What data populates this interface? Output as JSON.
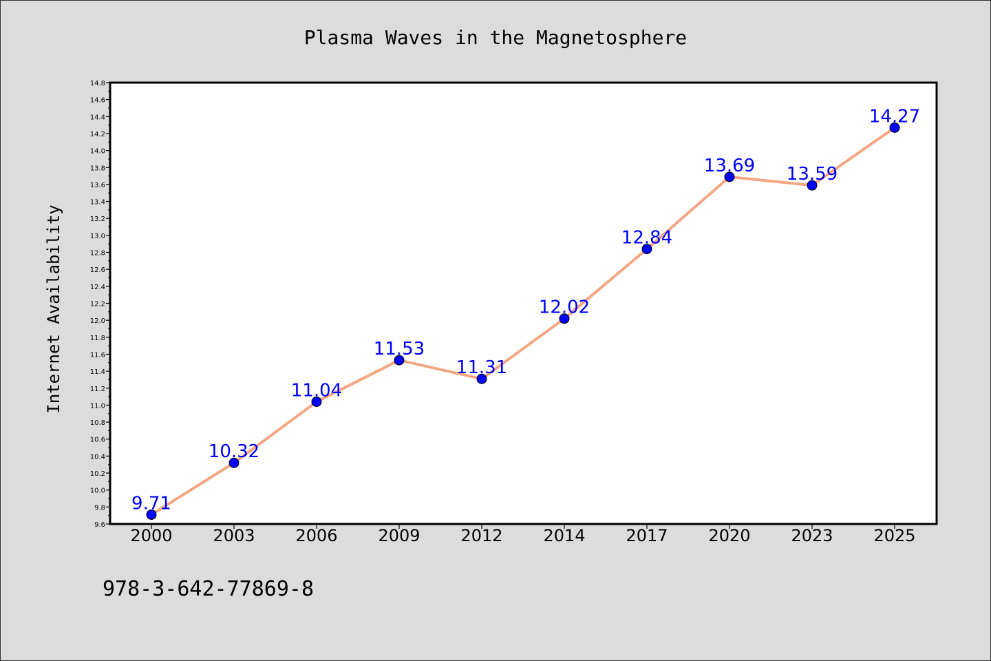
{
  "chart_data": {
    "type": "line",
    "title": "Plasma Waves in the Magnetosphere",
    "xlabel": "",
    "ylabel": "Internet Availability",
    "categories": [
      "2000",
      "2003",
      "2006",
      "2009",
      "2012",
      "2014",
      "2017",
      "2020",
      "2023",
      "2025"
    ],
    "series": [
      {
        "values": [
          9.71,
          10.32,
          11.04,
          11.53,
          11.31,
          12.02,
          12.84,
          13.69,
          13.59,
          14.27
        ],
        "line_color": "#f4a582",
        "marker_color": "#0000ff"
      }
    ],
    "data_labels": [
      "9.71",
      "10.32",
      "11.04",
      "11.53",
      "11.31",
      "12.02",
      "12.84",
      "13.69",
      "13.59",
      "14.27"
    ],
    "ylim": [
      9.6,
      14.8
    ],
    "yticks": [
      "9.6",
      "9.8",
      "10.0",
      "10.2",
      "10.4",
      "10.6",
      "10.8",
      "11.0",
      "11.2",
      "11.4",
      "11.6",
      "11.8",
      "12.0",
      "12.2",
      "12.4",
      "12.6",
      "12.8",
      "13.0",
      "13.2",
      "13.4",
      "13.6",
      "13.8",
      "14.0",
      "14.2",
      "14.4",
      "14.6",
      "14.8"
    ],
    "grid": false,
    "legend": "none",
    "label_color": "#0000ff",
    "background_color": "#dcdcdc",
    "plot_background_color": "#ffffff"
  },
  "footer": {
    "text": "978-3-642-77869-8"
  }
}
